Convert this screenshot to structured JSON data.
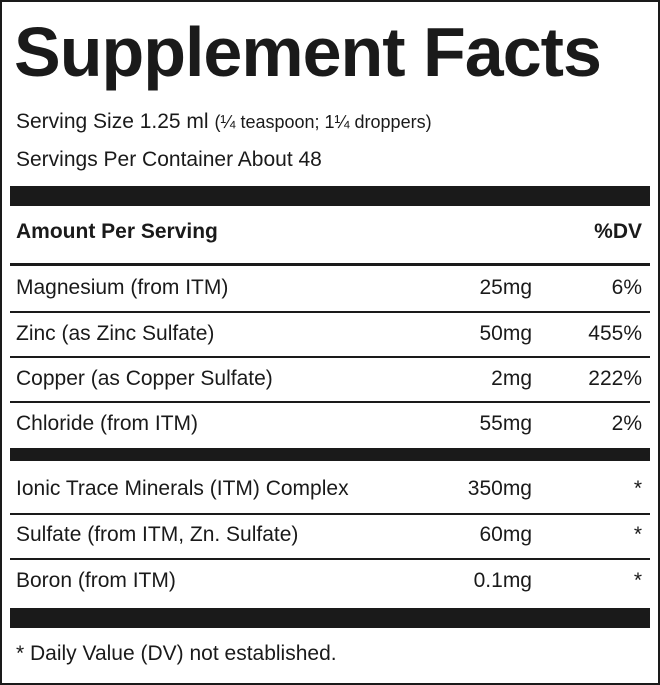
{
  "header": {
    "title": "Supplement Facts"
  },
  "serving": {
    "size": "Serving Size 1.25 ml",
    "size_note": "(¼ teaspoon; 1¼ droppers)",
    "servings": "Servings Per Container About 48"
  },
  "table": {
    "header": [
      "Amount Per Serving",
      "%DV"
    ],
    "rows": [
      [
        "Magnesium (from ITM)",
        "25mg",
        "6%"
      ],
      [
        "Zinc (as Zinc Sulfate)",
        "50mg",
        "455%"
      ],
      [
        "Copper (as Copper Sulfate)",
        "2mg",
        "222%"
      ],
      [
        "Chloride (from ITM)",
        "55mg",
        "2%"
      ],
      [
        "Ionic Trace Minerals (ITM) Complex",
        "350mg",
        "*"
      ],
      [
        "Sulfate (from ITM, Zn. Sulfate)",
        "60mg",
        "*"
      ],
      [
        "Boron (from ITM)",
        "0.1mg",
        "*"
      ]
    ]
  },
  "footnote": "* Daily Value (DV) not established."
}
